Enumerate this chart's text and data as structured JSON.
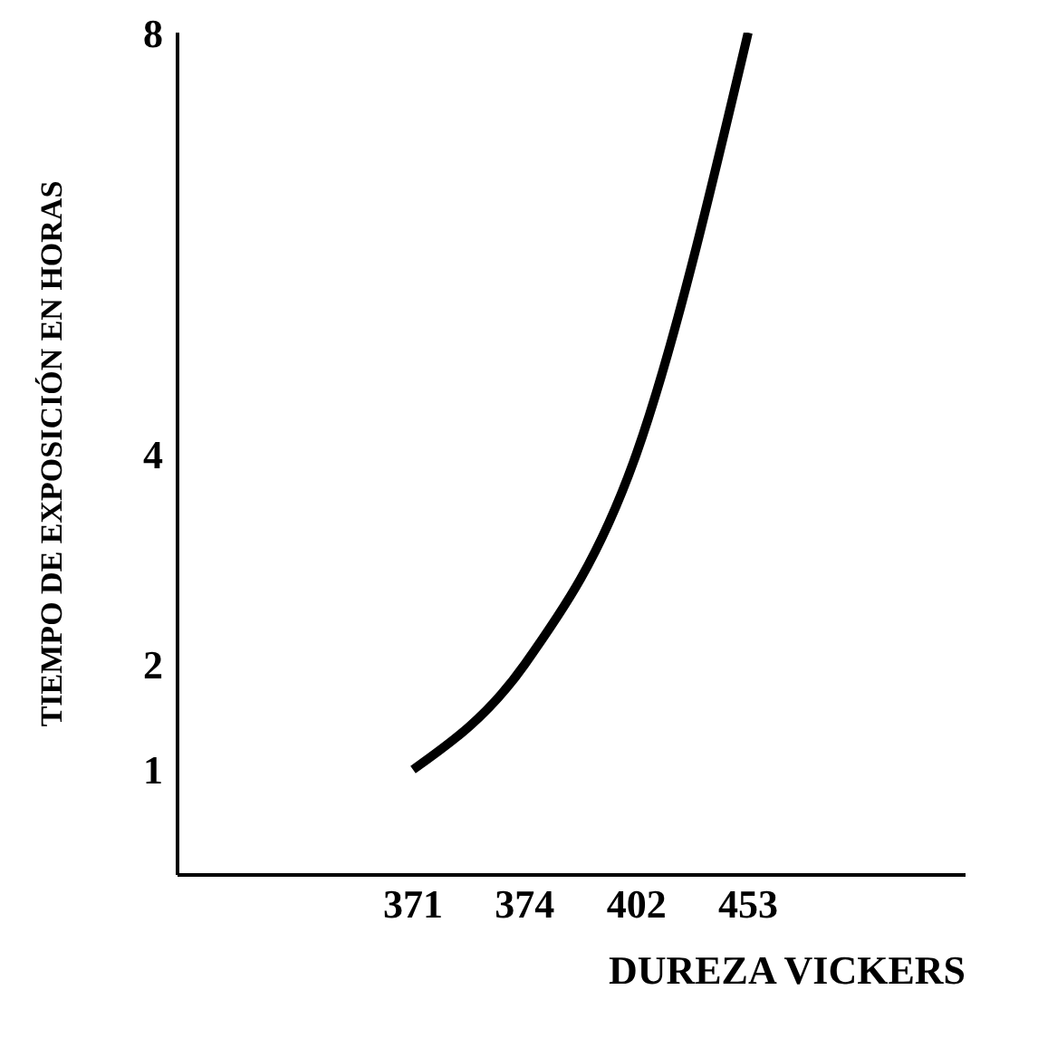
{
  "chart_data": {
    "type": "line",
    "xlabel": "DUREZA VICKERS",
    "ylabel": "TIEMPO DE EXPOSICIÓN EN HORAS",
    "categories": [
      "371",
      "374",
      "402",
      "453"
    ],
    "series": [
      {
        "color": "#000000",
        "values": [
          1,
          2,
          4,
          8
        ]
      }
    ],
    "ylim": [
      0,
      8
    ],
    "yticks": [
      1,
      2,
      4,
      8
    ],
    "marker": "none",
    "grid": false,
    "legend": false
  }
}
